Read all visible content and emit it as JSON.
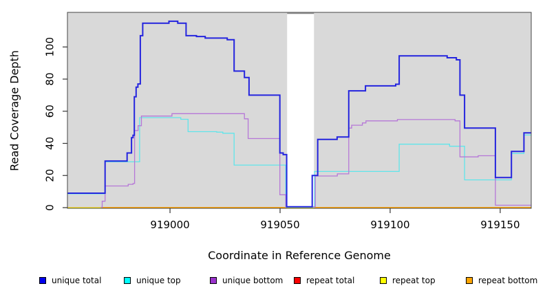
{
  "figure": {
    "xlabel": "Coordinate in Reference Genome",
    "ylabel": "Read Coverage Depth"
  },
  "chart_data": {
    "type": "line",
    "subtype": "step-coverage-plot",
    "title": "",
    "xlabel": "Coordinate in Reference Genome",
    "ylabel": "Read Coverage Depth",
    "xlim": [
      918953.4,
      919164.1
    ],
    "ylim": [
      0,
      121.7
    ],
    "x_ticks": [
      919000,
      919050,
      919100,
      919150
    ],
    "y_ticks": [
      0,
      20,
      40,
      60,
      80,
      100
    ],
    "grid": false,
    "plot_background": "#d9d9d9",
    "outer_background": "#ffffff",
    "masked_region": {
      "x_start": 919053.2,
      "x_end": 919065.4,
      "color": "#ffffff",
      "cap_color": "#8a8a8a"
    },
    "legend_position": "bottom",
    "legend": [
      {
        "label": "unique total",
        "color": "#0000ee"
      },
      {
        "label": "unique top",
        "color": "#00ffff"
      },
      {
        "label": "unique bottom",
        "color": "#9932cc"
      },
      {
        "label": "repeat total",
        "color": "#ff0000"
      },
      {
        "label": "repeat top",
        "color": "#ffff00"
      },
      {
        "label": "repeat bottom",
        "color": "#ffa500"
      }
    ],
    "series": [
      {
        "name": "repeat total",
        "line_color": "#d95f79",
        "width": 1.5,
        "above_mask": false,
        "segments": [
          [
            [
              918953.4,
              0
            ],
            [
              919164.1,
              0
            ]
          ]
        ]
      },
      {
        "name": "repeat top",
        "line_color": "#ffff00",
        "width": 1,
        "above_mask": false,
        "segments": [
          [
            [
              918953.4,
              0
            ],
            [
              919164.1,
              0
            ]
          ]
        ]
      },
      {
        "name": "repeat bottom",
        "line_color": "#ffa500",
        "width": 1.8,
        "above_mask": false,
        "segments": [
          [
            [
              918969,
              0
            ],
            [
              919053.2,
              0
            ]
          ],
          [
            [
              919065.4,
              0
            ],
            [
              919164.1,
              0
            ]
          ]
        ]
      },
      {
        "name": "unique top",
        "line_color": "#5fe5ea",
        "width": 1.3,
        "above_mask": false,
        "segments": [
          [
            [
              918953.4,
              8.6
            ],
            [
              918970.5,
              28.5
            ],
            [
              918986.2,
              56
            ],
            [
              919004.9,
              55
            ],
            [
              919008.2,
              47.3
            ],
            [
              919021.2,
              47
            ],
            [
              919024,
              46.3
            ],
            [
              919029.1,
              26.5
            ],
            [
              919052.6,
              0.3
            ],
            [
              919065.6,
              22.5
            ],
            [
              919104.1,
              39.5
            ],
            [
              919127,
              38.2
            ],
            [
              919133.8,
              17.3
            ],
            [
              919155.1,
              33.7
            ],
            [
              919160.8,
              45.2
            ],
            [
              919164.1,
              45.2
            ]
          ]
        ]
      },
      {
        "name": "unique bottom",
        "line_color": "#b677d8",
        "width": 1.3,
        "above_mask": true,
        "segments": [
          [
            [
              918968.6,
              0.2
            ],
            [
              918969.2,
              4
            ],
            [
              918970.5,
              13.5
            ],
            [
              918981,
              14.5
            ],
            [
              918983.2,
              15
            ],
            [
              918983.9,
              48
            ],
            [
              918985.5,
              51
            ],
            [
              918987,
              57
            ],
            [
              919000.9,
              58.5
            ],
            [
              919033.8,
              55.3
            ],
            [
              919035.5,
              43
            ],
            [
              919049.9,
              8
            ],
            [
              919052.6,
              0.5
            ],
            [
              919066,
              19.7
            ],
            [
              919076,
              21
            ],
            [
              919081.2,
              49.5
            ],
            [
              919082.5,
              51.3
            ],
            [
              919087.4,
              52.7
            ],
            [
              919089,
              54
            ],
            [
              919103.3,
              54.8
            ],
            [
              919129.5,
              54
            ],
            [
              919131.7,
              31.6
            ],
            [
              919140,
              32.3
            ],
            [
              919147.8,
              1.5
            ],
            [
              919164.1,
              1.5
            ]
          ]
        ]
      },
      {
        "name": "unique total",
        "line_color": "#2424de",
        "width": 2,
        "above_mask": true,
        "segments": [
          [
            [
              918953.4,
              9
            ],
            [
              918970.5,
              29
            ],
            [
              918980.5,
              34
            ],
            [
              918982.5,
              43.5
            ],
            [
              918983.2,
              45
            ],
            [
              918983.8,
              69
            ],
            [
              918984.6,
              75
            ],
            [
              918985.4,
              77
            ],
            [
              918986.5,
              107
            ],
            [
              918987.6,
              114.8
            ],
            [
              918999.5,
              116
            ],
            [
              919003.5,
              114.8
            ],
            [
              919007.3,
              107
            ],
            [
              919012,
              106.5
            ],
            [
              919016,
              105.5
            ],
            [
              919026,
              104.5
            ],
            [
              919029.1,
              85
            ],
            [
              919033.8,
              81
            ],
            [
              919035.9,
              70
            ],
            [
              919049.9,
              34
            ],
            [
              919051.4,
              33
            ],
            [
              919053,
              0.5
            ],
            [
              919064.6,
              20
            ],
            [
              919067.1,
              42.5
            ],
            [
              919075.9,
              44
            ],
            [
              919081.2,
              72.7
            ],
            [
              919088.8,
              75.8
            ],
            [
              919102.5,
              76.8
            ],
            [
              919104.1,
              94.5
            ],
            [
              919125.9,
              93.3
            ],
            [
              919130.1,
              92
            ],
            [
              919131.7,
              70
            ],
            [
              919133.8,
              49.5
            ],
            [
              919147.8,
              18.7
            ],
            [
              919155.1,
              35
            ],
            [
              919160.8,
              46.5
            ],
            [
              919164.1,
              46.5
            ]
          ]
        ]
      }
    ]
  }
}
